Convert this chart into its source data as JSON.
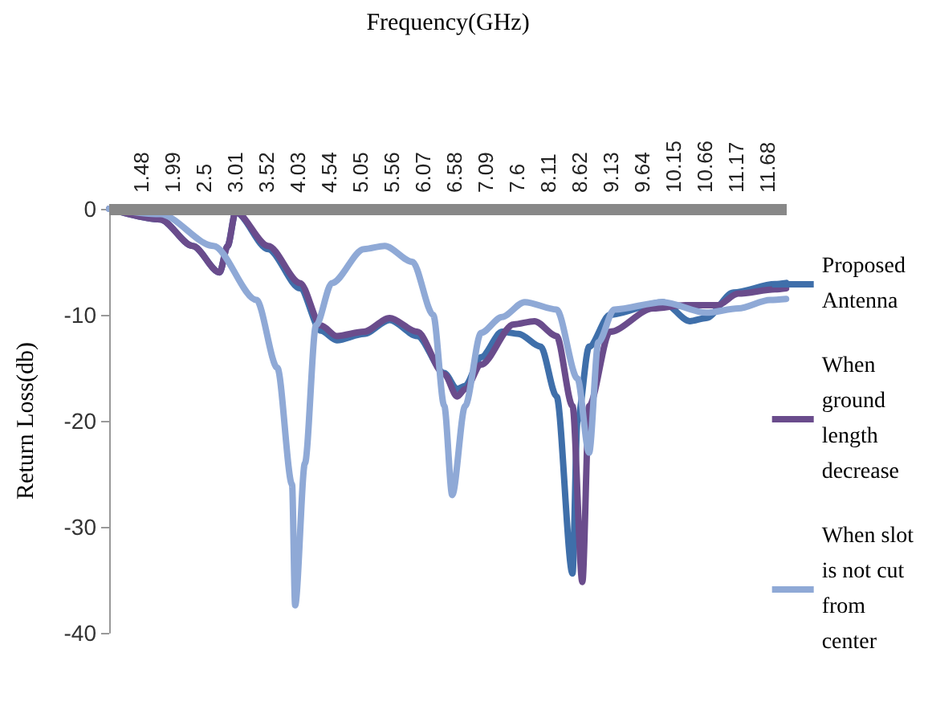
{
  "chart_data": {
    "type": "line",
    "xlabel": "Frequency(GHz)",
    "ylabel": "Return Loss(db)",
    "xlim": [
      0.96,
      12.0
    ],
    "xticks": [
      1.48,
      1.99,
      2.5,
      3.01,
      3.52,
      4.03,
      4.54,
      5.05,
      5.56,
      6.07,
      6.58,
      7.09,
      7.6,
      8.11,
      8.62,
      9.13,
      9.64,
      10.15,
      10.66,
      11.17,
      11.68
    ],
    "ylim": [
      -40,
      0
    ],
    "yticks": [
      0,
      -10,
      -20,
      -30,
      -40
    ],
    "grid": false,
    "legend": "right",
    "marker": "none",
    "line_style": "solid",
    "series": [
      {
        "name": "Proposed Antenna",
        "color": "#3f6faa",
        "x": [
          0.96,
          1.79,
          2.32,
          2.76,
          2.89,
          3.02,
          3.55,
          4.07,
          4.41,
          4.67,
          5.11,
          5.53,
          5.98,
          6.42,
          6.63,
          6.76,
          7.02,
          7.36,
          7.63,
          7.99,
          8.25,
          8.51,
          8.59,
          8.78,
          9.12,
          9.98,
          10.42,
          10.69,
          11.13,
          11.81,
          11.99
        ],
        "values": [
          0,
          -1,
          -3.5,
          -6,
          -3.5,
          -0.3,
          -3.8,
          -7.5,
          -11.5,
          -12.4,
          -11.8,
          -10.5,
          -12,
          -15.5,
          -17,
          -16.7,
          -14,
          -11.6,
          -11.8,
          -13,
          -17.7,
          -34.4,
          -20,
          -13,
          -10,
          -8.8,
          -10.6,
          -10.3,
          -7.9,
          -7.1,
          -7
        ]
      },
      {
        "name": "When ground length decrease",
        "color": "#6a4c8c",
        "x": [
          0.96,
          1.79,
          2.32,
          2.76,
          2.89,
          3.02,
          3.55,
          4.07,
          4.41,
          4.67,
          5.11,
          5.53,
          5.98,
          6.42,
          6.63,
          6.76,
          7.02,
          7.55,
          7.89,
          8.25,
          8.51,
          8.67,
          8.78,
          9.12,
          9.82,
          10.35,
          10.87,
          11.21,
          11.81,
          11.99
        ],
        "values": [
          0,
          -1,
          -3.5,
          -6,
          -3.5,
          -0.3,
          -3.5,
          -7,
          -11,
          -12,
          -11.6,
          -10.3,
          -11.6,
          -15.6,
          -17.7,
          -17,
          -14.7,
          -10.9,
          -10.6,
          -12,
          -18.6,
          -35.2,
          -18.6,
          -11.6,
          -9.4,
          -9.1,
          -9.1,
          -8,
          -7.6,
          -7.5
        ]
      },
      {
        "name": "When slot is not cut from center",
        "color": "#8fa9d6",
        "x": [
          0.96,
          1.79,
          2.66,
          3.36,
          3.7,
          3.94,
          3.99,
          4.15,
          4.33,
          4.59,
          5.11,
          5.45,
          5.9,
          6.24,
          6.42,
          6.55,
          6.76,
          7.02,
          7.36,
          7.73,
          8.25,
          8.59,
          8.78,
          8.93,
          9.19,
          9.98,
          10.69,
          11.21,
          11.73,
          11.99
        ],
        "values": [
          0,
          -0.5,
          -3.5,
          -8.6,
          -15,
          -26,
          -37.4,
          -24,
          -11,
          -7,
          -3.8,
          -3.5,
          -5,
          -10,
          -18.6,
          -27,
          -18.6,
          -11.7,
          -10.2,
          -8.8,
          -9.5,
          -16,
          -23,
          -12.6,
          -9.5,
          -8.8,
          -9.8,
          -9.4,
          -8.6,
          -8.5
        ]
      }
    ]
  }
}
